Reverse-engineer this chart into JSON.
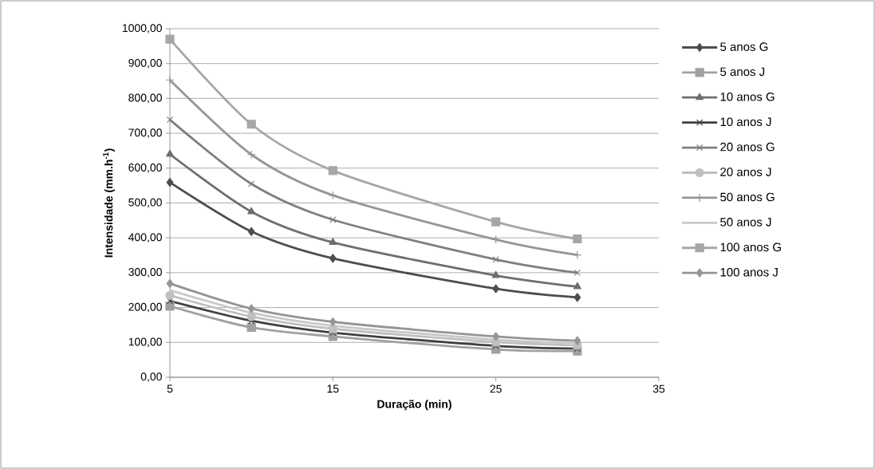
{
  "chart_data": {
    "type": "line",
    "xlabel": "Duração (min)",
    "ylabel": "Intensidade (mm.h$^{-1}$)",
    "x": [
      5,
      10,
      15,
      25,
      30
    ],
    "xlim": [
      5,
      35
    ],
    "xticks": [
      5,
      15,
      25,
      35
    ],
    "ylim": [
      0,
      1000
    ],
    "yticks": [
      {
        "value": 0,
        "label": "0,00"
      },
      {
        "value": 100,
        "label": "100,00"
      },
      {
        "value": 200,
        "label": "200,00"
      },
      {
        "value": 300,
        "label": "300,00"
      },
      {
        "value": 400,
        "label": "400,00"
      },
      {
        "value": 500,
        "label": "500,00"
      },
      {
        "value": 600,
        "label": "600,00"
      },
      {
        "value": 700,
        "label": "700,00"
      },
      {
        "value": 800,
        "label": "800,00"
      },
      {
        "value": 900,
        "label": "900,00"
      },
      {
        "value": 1000,
        "label": "1000,00"
      }
    ],
    "grid": "y",
    "legend": "right",
    "series": [
      {
        "name": "5 anos G",
        "color": "#4d4d4d",
        "marker": "diamond",
        "values": [
          559,
          418,
          341,
          254,
          229
        ]
      },
      {
        "name": "5 anos J",
        "color": "#a0a0a0",
        "marker": "square",
        "values": [
          204,
          143,
          117,
          80,
          75
        ]
      },
      {
        "name": "10 anos G",
        "color": "#6e6e6e",
        "marker": "triangle",
        "values": [
          640,
          475,
          387,
          292,
          260
        ]
      },
      {
        "name": "10 anos J",
        "color": "#3f3f3f",
        "marker": "cross",
        "values": [
          219,
          162,
          128,
          90,
          82
        ]
      },
      {
        "name": "20 anos G",
        "color": "#7f7f7f",
        "marker": "cross",
        "values": [
          739,
          555,
          452,
          338,
          300
        ]
      },
      {
        "name": "20 anos J",
        "color": "#c0c0c0",
        "marker": "circle",
        "values": [
          235,
          174,
          139,
          101,
          92
        ]
      },
      {
        "name": "50 anos G",
        "color": "#969696",
        "marker": "plus",
        "values": [
          853,
          639,
          522,
          395,
          351
        ]
      },
      {
        "name": "50 anos J",
        "color": "#c8c8c8",
        "marker": "none",
        "values": [
          250,
          185,
          148,
          108,
          98
        ]
      },
      {
        "name": "100 anos G",
        "color": "#a6a6a6",
        "marker": "square",
        "values": [
          970,
          726,
          593,
          446,
          397
        ]
      },
      {
        "name": "100 anos J",
        "color": "#959595",
        "marker": "diamond",
        "values": [
          269,
          197,
          159,
          117,
          105
        ]
      }
    ]
  }
}
